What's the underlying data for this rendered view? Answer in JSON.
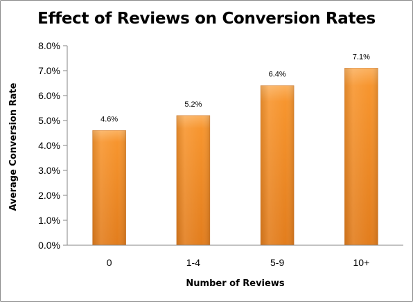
{
  "chart_data": {
    "type": "bar",
    "title": "Effect of Reviews on Conversion Rates",
    "xlabel": "Number of Reviews",
    "ylabel": "Average Conversion Rate",
    "categories": [
      "0",
      "1-4",
      "5-9",
      "10+"
    ],
    "values": [
      4.6,
      5.2,
      6.4,
      7.1
    ],
    "data_labels": [
      "4.6%",
      "5.2%",
      "6.4%",
      "7.1%"
    ],
    "yticks": [
      0,
      1,
      2,
      3,
      4,
      5,
      6,
      7,
      8
    ],
    "ytick_labels": [
      "0.0%",
      "1.0%",
      "2.0%",
      "3.0%",
      "4.0%",
      "5.0%",
      "6.0%",
      "7.0%",
      "8.0%"
    ],
    "ylim": [
      0,
      8
    ],
    "grid": false,
    "legend": "none",
    "colors": {
      "bar_light": "#fbb261",
      "bar_mid": "#f7952e",
      "bar_dark": "#e27d1d",
      "axis": "#868686"
    }
  }
}
